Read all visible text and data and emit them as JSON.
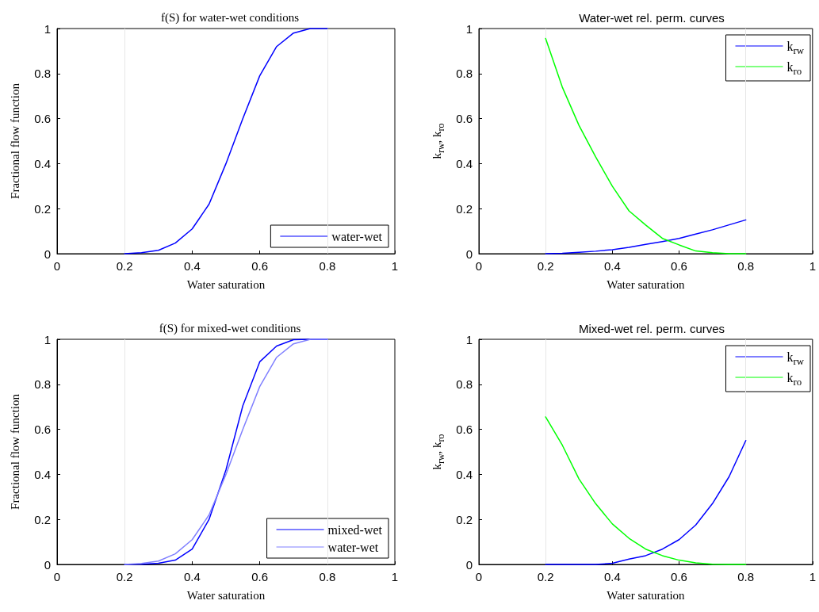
{
  "chart_data": [
    {
      "type": "line",
      "title": "f(S) for water-wet conditions",
      "xlabel": "Water saturation",
      "ylabel": "Fractional flow function",
      "x": [
        0.2,
        0.25,
        0.3,
        0.35,
        0.4,
        0.45,
        0.5,
        0.55,
        0.6,
        0.65,
        0.7,
        0.75,
        0.8
      ],
      "series": [
        {
          "name": "water-wet",
          "color": "#0000ff",
          "values": [
            0,
            0.004,
            0.015,
            0.047,
            0.11,
            0.22,
            0.4,
            0.6,
            0.79,
            0.92,
            0.98,
            1,
            1
          ]
        }
      ],
      "xlim": [
        0,
        1
      ],
      "xticks": [
        0,
        0.2,
        0.4,
        0.6,
        0.8,
        1
      ],
      "ylim": [
        0,
        1
      ],
      "yticks": [
        0,
        0.2,
        0.4,
        0.6,
        0.8,
        1
      ],
      "legend": "bottom right",
      "marker": "none",
      "line_style": "solid",
      "ref_lines": [
        {
          "axis": "x",
          "value": 0.2,
          "color": "#e6e6e6"
        },
        {
          "axis": "x",
          "value": 0.8,
          "color": "#e6e6e6"
        }
      ]
    },
    {
      "type": "line",
      "title": "Water-wet rel. perm. curves",
      "xlabel": "Water saturation",
      "ylabel": "k$_{rw}$, k$_{ro}$",
      "x": [
        0.2,
        0.25,
        0.3,
        0.35,
        0.4,
        0.45,
        0.5,
        0.55,
        0.6,
        0.65,
        0.7,
        0.75,
        0.8
      ],
      "series": [
        {
          "name": "k$_{rw}$",
          "color": "#0000ff",
          "values": [
            0,
            0.002,
            0.006,
            0.011,
            0.018,
            0.028,
            0.041,
            0.054,
            0.068,
            0.087,
            0.106,
            0.128,
            0.15
          ]
        },
        {
          "name": "k$_{ro}$",
          "color": "#00ff00",
          "values": [
            0.956,
            0.74,
            0.57,
            0.43,
            0.3,
            0.19,
            0.127,
            0.068,
            0.039,
            0.012,
            0.004,
            0,
            0
          ]
        }
      ],
      "xlim": [
        0,
        1
      ],
      "xticks": [
        0,
        0.2,
        0.4,
        0.6,
        0.8,
        1
      ],
      "ylim": [
        0,
        1
      ],
      "yticks": [
        0,
        0.2,
        0.4,
        0.6,
        0.8,
        1
      ],
      "legend": "top right",
      "marker": "none",
      "line_style": "solid",
      "ref_lines": [
        {
          "axis": "x",
          "value": 0.2,
          "color": "#e6e6e6"
        },
        {
          "axis": "x",
          "value": 0.8,
          "color": "#e6e6e6"
        }
      ]
    },
    {
      "type": "line",
      "title": "f(S) for mixed-wet conditions",
      "xlabel": "Water saturation",
      "ylabel": "Fractional flow function",
      "x": [
        0.2,
        0.25,
        0.3,
        0.35,
        0.4,
        0.45,
        0.5,
        0.55,
        0.6,
        0.65,
        0.7,
        0.75,
        0.8
      ],
      "series": [
        {
          "name": "mixed-wet",
          "color": "#0000ff",
          "values": [
            0,
            0.001,
            0.005,
            0.019,
            0.068,
            0.2,
            0.42,
            0.705,
            0.9,
            0.97,
            0.998,
            1,
            1
          ]
        },
        {
          "name": "water-wet",
          "color": "#8080ff",
          "values": [
            0,
            0.004,
            0.015,
            0.047,
            0.11,
            0.22,
            0.4,
            0.6,
            0.79,
            0.92,
            0.98,
            1,
            1
          ]
        }
      ],
      "xlim": [
        0,
        1
      ],
      "xticks": [
        0,
        0.2,
        0.4,
        0.6,
        0.8,
        1
      ],
      "ylim": [
        0,
        1
      ],
      "yticks": [
        0,
        0.2,
        0.4,
        0.6,
        0.8,
        1
      ],
      "legend": "bottom right",
      "marker": "none",
      "line_style": "solid",
      "ref_lines": [
        {
          "axis": "x",
          "value": 0.2,
          "color": "#e6e6e6"
        },
        {
          "axis": "x",
          "value": 0.8,
          "color": "#e6e6e6"
        }
      ]
    },
    {
      "type": "line",
      "title": "Mixed-wet rel. perm. curves",
      "xlabel": "Water saturation",
      "ylabel": "k$_{rw}$, k$_{ro}$",
      "x": [
        0.2,
        0.25,
        0.3,
        0.35,
        0.4,
        0.45,
        0.5,
        0.55,
        0.6,
        0.65,
        0.7,
        0.75,
        0.8
      ],
      "series": [
        {
          "name": "k$_{rw}$",
          "color": "#0000ff",
          "values": [
            0,
            0,
            0,
            0,
            0.005,
            0.024,
            0.039,
            0.068,
            0.11,
            0.175,
            0.27,
            0.39,
            0.55
          ]
        },
        {
          "name": "k$_{ro}$",
          "color": "#00ff00",
          "values": [
            0.655,
            0.53,
            0.38,
            0.27,
            0.18,
            0.116,
            0.068,
            0.039,
            0.019,
            0.007,
            0.001,
            0,
            0
          ]
        }
      ],
      "xlim": [
        0,
        1
      ],
      "xticks": [
        0,
        0.2,
        0.4,
        0.6,
        0.8,
        1
      ],
      "ylim": [
        0,
        1
      ],
      "yticks": [
        0,
        0.2,
        0.4,
        0.6,
        0.8,
        1
      ],
      "legend": "top right",
      "marker": "none",
      "line_style": "solid",
      "ref_lines": [
        {
          "axis": "x",
          "value": 0.2,
          "color": "#e6e6e6"
        },
        {
          "axis": "x",
          "value": 0.8,
          "color": "#e6e6e6"
        }
      ]
    }
  ]
}
